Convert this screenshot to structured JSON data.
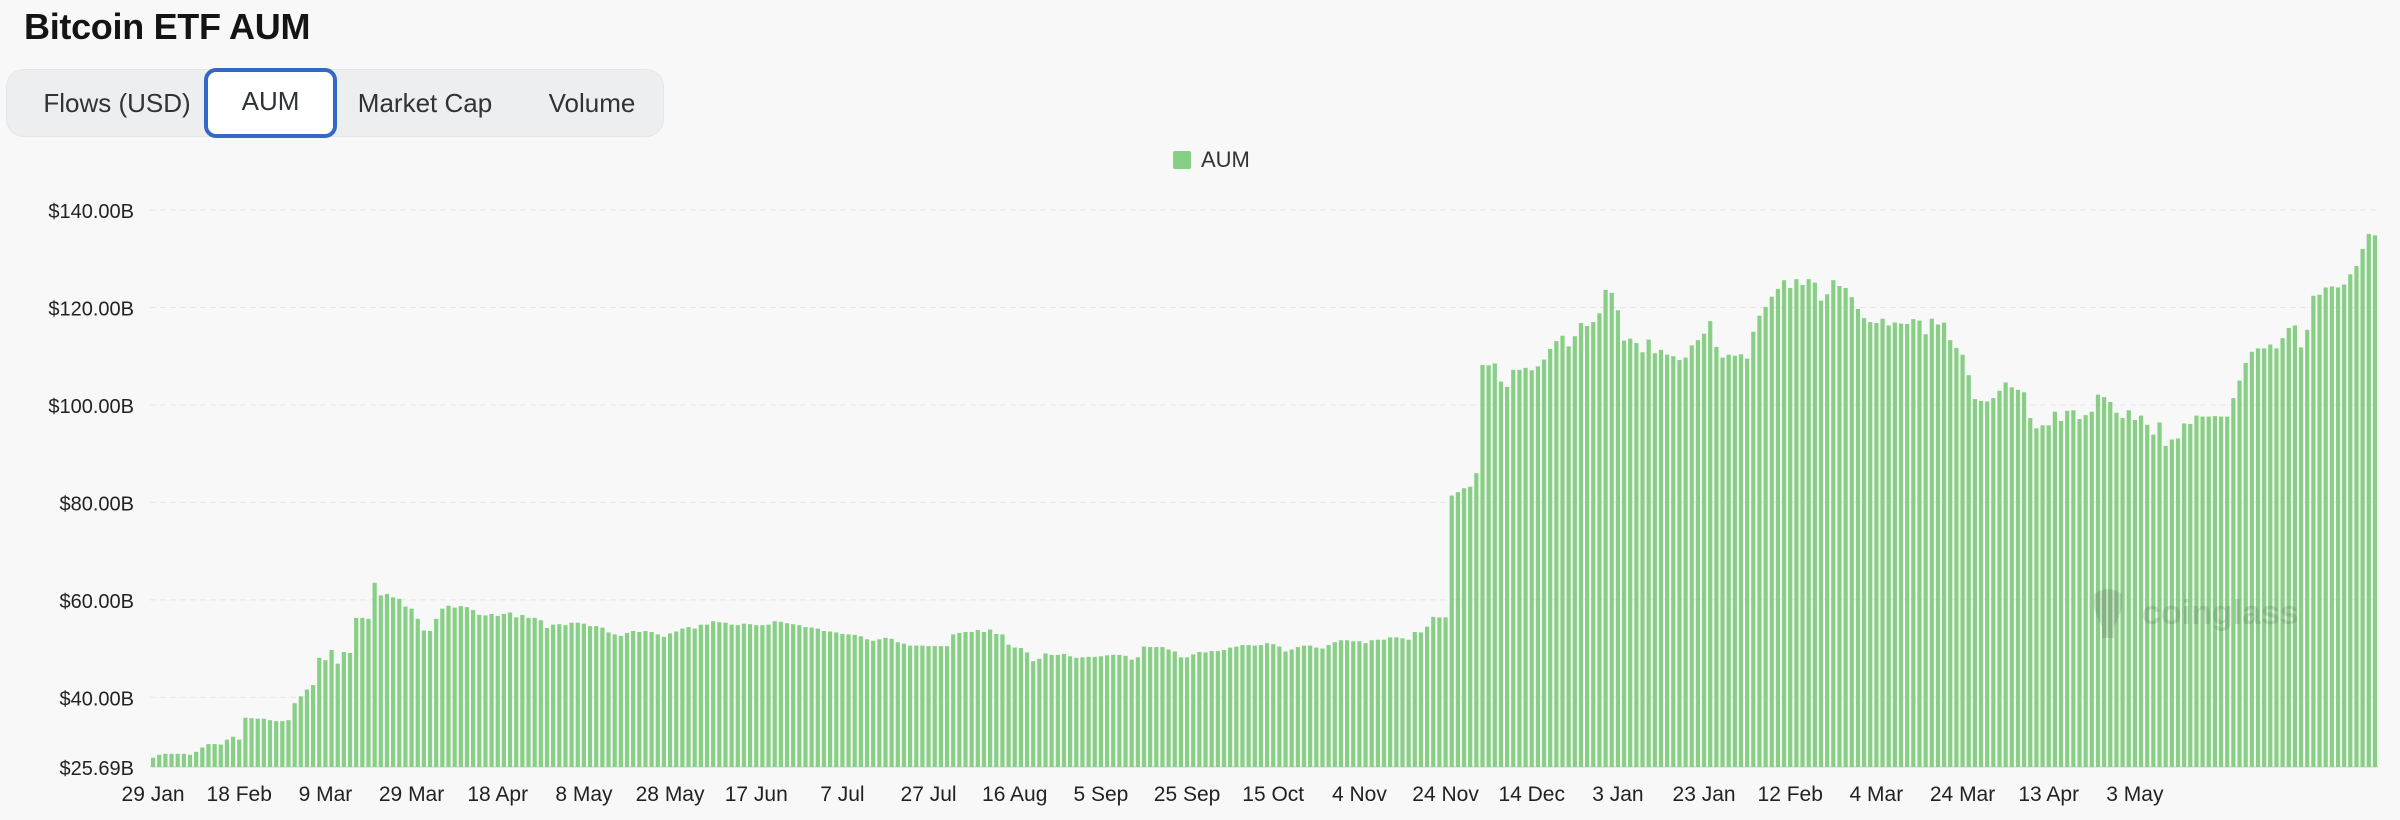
{
  "page": {
    "title": "Bitcoin ETF AUM"
  },
  "tabs": [
    {
      "label": "Flows (USD)",
      "active": false
    },
    {
      "label": "AUM",
      "active": true
    },
    {
      "label": "Market Cap",
      "active": false
    },
    {
      "label": "Volume",
      "active": false
    }
  ],
  "watermark": "coinglass",
  "colors": {
    "bar": "#86cf84",
    "active_tab_border": "#3567c7",
    "gridline": "#e6e6e6"
  },
  "chart_data": {
    "type": "bar",
    "title": "",
    "xlabel": "",
    "ylabel": "",
    "legend": {
      "entries": [
        "AUM"
      ],
      "placement": "top-center"
    },
    "grid": true,
    "ylim": [
      25.69,
      140
    ],
    "y_ticks": [
      {
        "value": 25.69,
        "label": "$25.69B"
      },
      {
        "value": 40,
        "label": "$40.00B"
      },
      {
        "value": 60,
        "label": "$60.00B"
      },
      {
        "value": 80,
        "label": "$80.00B"
      },
      {
        "value": 100,
        "label": "$100.00B"
      },
      {
        "value": 120,
        "label": "$120.00B"
      },
      {
        "value": 140,
        "label": "$140.00B"
      }
    ],
    "x_tick_labels": [
      "29 Jan",
      "18 Feb",
      "9 Mar",
      "29 Mar",
      "18 Apr",
      "8 May",
      "28 May",
      "17 Jun",
      "7 Jul",
      "27 Jul",
      "16 Aug",
      "5 Sep",
      "25 Sep",
      "15 Oct",
      "4 Nov",
      "24 Nov",
      "14 Dec",
      "3 Jan",
      "23 Jan",
      "12 Feb",
      "4 Mar",
      "24 Mar",
      "13 Apr",
      "3 May"
    ],
    "series": [
      {
        "name": "AUM",
        "unit": "USD billions",
        "values": [
          27.6,
          28.2,
          28.4,
          28.4,
          28.4,
          28.4,
          28.2,
          28.8,
          29.7,
          30.4,
          30.4,
          30.3,
          31.3,
          31.9,
          31.3,
          35.8,
          35.7,
          35.6,
          35.6,
          35.3,
          35.1,
          35.1,
          35.3,
          38.8,
          40.2,
          41.6,
          42.5,
          48.1,
          47.6,
          49.7,
          46.9,
          49.3,
          49.1,
          56.3,
          56.3,
          56.1,
          63.5,
          60.9,
          61.2,
          60.5,
          60.2,
          58.6,
          58.2,
          56.1,
          53.7,
          53.6,
          56.1,
          58.2,
          58.8,
          58.4,
          58.7,
          58.5,
          57.9,
          56.9,
          56.8,
          57.1,
          56.7,
          57.1,
          57.4,
          56.4,
          56.9,
          56.3,
          56.3,
          55.8,
          54.2,
          54.9,
          55.0,
          54.8,
          55.3,
          55.3,
          55.1,
          54.6,
          54.6,
          54.3,
          53.3,
          52.9,
          52.6,
          53.2,
          53.6,
          53.4,
          53.6,
          53.4,
          52.9,
          52.4,
          53.1,
          53.5,
          54.1,
          54.4,
          54.1,
          54.9,
          54.9,
          55.6,
          55.4,
          55.3,
          54.9,
          54.8,
          55.1,
          55.0,
          54.8,
          54.8,
          54.9,
          55.6,
          55.5,
          55.2,
          55.0,
          54.8,
          54.4,
          54.3,
          54.1,
          53.6,
          53.5,
          53.3,
          53.0,
          52.9,
          52.8,
          52.5,
          51.9,
          51.6,
          51.9,
          52.2,
          52.0,
          51.3,
          51.0,
          50.6,
          50.6,
          50.6,
          50.5,
          50.5,
          50.5,
          50.5,
          52.9,
          53.2,
          53.4,
          53.4,
          53.8,
          53.4,
          53.9,
          53.0,
          52.9,
          50.8,
          50.2,
          50.1,
          49.2,
          47.4,
          47.9,
          49.0,
          48.7,
          48.7,
          48.9,
          48.4,
          48.1,
          48.2,
          48.3,
          48.3,
          48.4,
          48.6,
          48.7,
          48.7,
          48.5,
          47.7,
          48.2,
          50.4,
          50.3,
          50.3,
          50.3,
          49.8,
          49.4,
          48.2,
          48.2,
          48.8,
          49.3,
          49.2,
          49.5,
          49.5,
          49.7,
          50.2,
          50.4,
          50.7,
          50.7,
          50.6,
          50.7,
          51.1,
          50.9,
          50.4,
          49.4,
          49.8,
          50.3,
          50.6,
          50.6,
          50.2,
          50.0,
          50.7,
          51.3,
          51.7,
          51.7,
          51.5,
          51.5,
          51.1,
          51.7,
          51.8,
          51.8,
          52.3,
          52.3,
          52.1,
          51.8,
          53.4,
          53.3,
          54.5,
          56.5,
          56.4,
          56.4,
          81.4,
          82.1,
          82.9,
          83.2,
          86.0,
          108.2,
          108.1,
          108.5,
          104.8,
          103.7,
          107.2,
          107.2,
          107.6,
          107.1,
          107.9,
          109.3,
          111.5,
          113.1,
          114.2,
          112.0,
          114.1,
          116.8,
          116.2,
          117.0,
          118.8,
          123.6,
          123.0,
          119.4,
          113.2,
          113.6,
          112.7,
          110.8,
          113.4,
          110.6,
          111.3,
          110.3,
          110.0,
          109.2,
          109.7,
          112.2,
          113.3,
          114.6,
          117.2,
          111.9,
          109.7,
          110.3,
          110.1,
          110.4,
          109.5,
          115.0,
          118.3,
          120.1,
          122.2,
          123.8,
          125.6,
          124.0,
          125.8,
          124.6,
          125.8,
          125.1,
          121.4,
          122.7,
          125.6,
          124.4,
          124.0,
          122.1,
          119.7,
          117.8,
          117.0,
          116.8,
          117.7,
          116.3,
          116.9,
          116.7,
          116.6,
          117.6,
          117.3,
          114.5,
          117.7,
          116.5,
          116.9,
          113.3,
          111.7,
          110.3,
          106.1,
          101.2,
          100.8,
          100.7,
          101.4,
          102.9,
          104.6,
          103.6,
          103.1,
          102.6,
          97.3,
          95.2,
          95.8,
          95.8,
          98.6,
          96.7,
          98.8,
          98.9,
          97.1,
          97.9,
          98.6,
          102.1,
          101.6,
          100.6,
          98.4,
          97.3,
          98.9,
          96.9,
          97.8,
          95.9,
          93.9,
          96.4,
          91.6,
          92.9,
          93.1,
          96.2,
          96.1,
          97.8,
          97.6,
          97.6,
          97.7,
          97.6,
          97.6,
          101.4,
          105.0,
          108.6,
          110.9,
          111.6,
          111.6,
          112.4,
          111.6,
          113.7,
          115.8,
          116.3,
          111.8,
          115.4,
          122.4,
          122.6,
          124.1,
          124.3,
          124.1,
          124.7,
          126.8,
          128.5,
          132.0,
          135.1,
          134.8
        ]
      }
    ]
  }
}
